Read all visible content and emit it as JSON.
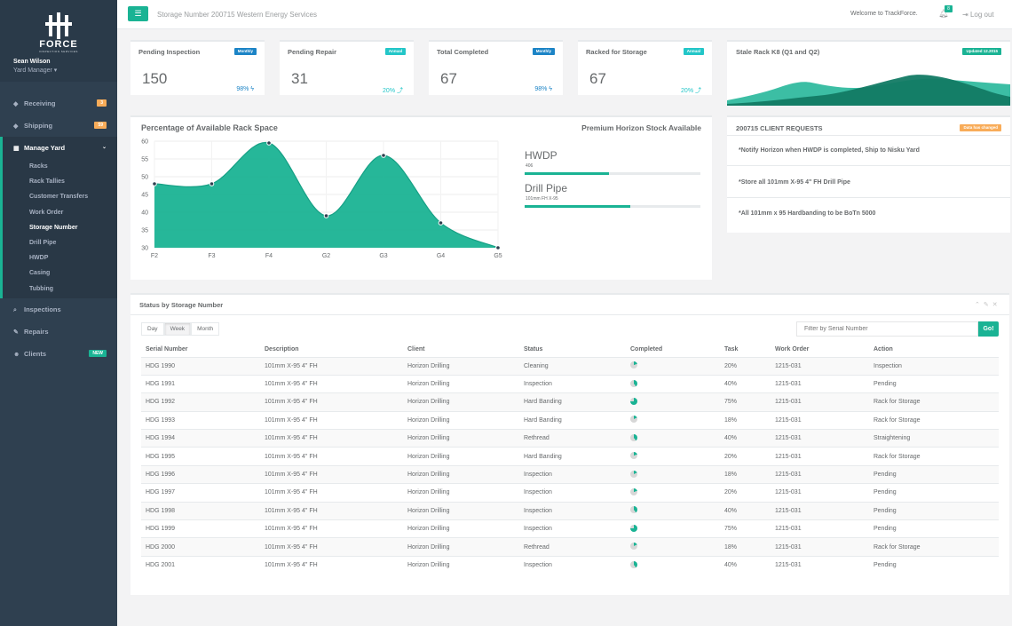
{
  "brand": {
    "name": "FORCE",
    "tagline": "INSPECTION SERVICES"
  },
  "user": {
    "name": "Sean Wilson",
    "role": "Yard Manager ▾"
  },
  "sidebar": {
    "items": [
      {
        "label": "Receiving",
        "icon": "tag-icon",
        "badge": "3",
        "badge_color": "#f8ac59"
      },
      {
        "label": "Shipping",
        "icon": "tag-icon",
        "badge": "59",
        "badge_color": "#f8ac59"
      },
      {
        "label": "Manage Yard",
        "icon": "grid-icon",
        "caret": "⌄"
      },
      {
        "label": "Inspections",
        "icon": "search-icon"
      },
      {
        "label": "Repairs",
        "icon": "wrench-icon"
      },
      {
        "label": "Clients",
        "icon": "users-icon",
        "badge": "NEW",
        "badge_color": "#1ab394"
      }
    ],
    "subitems": [
      "Racks",
      "Rack Tallies",
      "Customer Transfers",
      "Work Order",
      "Storage Number",
      "Drill Pipe",
      "HWDP",
      "Casing",
      "Tubbing"
    ]
  },
  "topbar": {
    "title": "Storage Number 200715 Western Energy Services",
    "welcome": "Welcome to TrackForce.",
    "notifications": "8",
    "logout": "Log out"
  },
  "stats": [
    {
      "title": "Pending Inspection",
      "label": "Monthly",
      "label_color": "#1c84c6",
      "value": "150",
      "pct": "98% ϟ",
      "pct_color": "#1c84c6"
    },
    {
      "title": "Pending Repair",
      "label": "Annual",
      "label_color": "#23c6c8",
      "value": "31",
      "pct": "20% ⤴",
      "pct_color": "#23c6c8"
    },
    {
      "title": "Total Completed",
      "label": "Monthly",
      "label_color": "#1c84c6",
      "value": "67",
      "pct": "98% ϟ",
      "pct_color": "#1c84c6"
    },
    {
      "title": "Racked for Storage",
      "label": "Annual",
      "label_color": "#23c6c8",
      "value": "67",
      "pct": "20% ⤴",
      "pct_color": "#23c6c8"
    }
  ],
  "stale": {
    "title": "Stale Rack K8 (Q1 and Q2)",
    "label": "Updated 12.2015"
  },
  "chart_data": {
    "type": "area",
    "title": "Percentage of Available Rack Space",
    "categories": [
      "F2",
      "F3",
      "F4",
      "G2",
      "G3",
      "G4",
      "G5"
    ],
    "values": [
      48,
      48,
      59.5,
      39,
      56,
      37,
      30
    ],
    "ylim": [
      30,
      60
    ],
    "yticks": [
      30,
      35,
      40,
      45,
      50,
      55,
      60
    ],
    "color": "#1ab394",
    "grid": true
  },
  "premium": {
    "title": "Premium Horizon Stock Available",
    "items": [
      {
        "label": "HWDP",
        "sub": "406",
        "progress": 0.48
      },
      {
        "label": "Drill Pipe",
        "sub": "101mm FH X-95",
        "progress": 0.6
      }
    ]
  },
  "requests": {
    "title": "200715 CLIENT REQUESTS",
    "label": "Data has changed",
    "items": [
      "*Notify Horizon when HWDP is completed, Ship to Nisku Yard",
      "*Store all 101mm X-95 4\" FH Drill Pipe",
      "*All 101mm x 95 Hardbanding to be BoTn 5000"
    ]
  },
  "status_table": {
    "title": "Status by Storage Number",
    "ranges": [
      "Day",
      "Week",
      "Month"
    ],
    "active_range": "Week",
    "filter_placeholder": "Filter by Serial Number",
    "go_label": "Go!",
    "columns": [
      "Serial Number",
      "Description",
      "Client",
      "Status",
      "Completed",
      "Task",
      "Work Order",
      "Action"
    ],
    "rows": [
      {
        "serial": "HDG 1990",
        "desc": "101mm X-95 4\" FH",
        "client": "Horizon Drilling",
        "status": "Cleaning",
        "completed": 0.2,
        "task": "20%",
        "wo": "1215-031",
        "action": "Inspection"
      },
      {
        "serial": "HDG 1991",
        "desc": "101mm X-95 4\" FH",
        "client": "Horizon Drilling",
        "status": "Inspection",
        "completed": 0.4,
        "task": "40%",
        "wo": "1215-031",
        "action": "Pending"
      },
      {
        "serial": "HDG 1992",
        "desc": "101mm X-95 4\" FH",
        "client": "Horizon Drilling",
        "status": "Hard Banding",
        "completed": 0.75,
        "task": "75%",
        "wo": "1215-031",
        "action": "Rack for Storage"
      },
      {
        "serial": "HDG 1993",
        "desc": "101mm X-95 4\" FH",
        "client": "Horizon Drilling",
        "status": "Hard Banding",
        "completed": 0.18,
        "task": "18%",
        "wo": "1215-031",
        "action": "Rack for Storage"
      },
      {
        "serial": "HDG 1994",
        "desc": "101mm X-95 4\" FH",
        "client": "Horizon Drilling",
        "status": "Rethread",
        "completed": 0.4,
        "task": "40%",
        "wo": "1215-031",
        "action": "Straightening"
      },
      {
        "serial": "HDG 1995",
        "desc": "101mm X-95 4\" FH",
        "client": "Horizon Drilling",
        "status": "Hard Banding",
        "completed": 0.2,
        "task": "20%",
        "wo": "1215-031",
        "action": "Rack for Storage"
      },
      {
        "serial": "HDG 1996",
        "desc": "101mm X-95 4\" FH",
        "client": "Horizon Drilling",
        "status": "Inspection",
        "completed": 0.18,
        "task": "18%",
        "wo": "1215-031",
        "action": "Pending"
      },
      {
        "serial": "HDG 1997",
        "desc": "101mm X-95 4\" FH",
        "client": "Horizon Drilling",
        "status": "Inspection",
        "completed": 0.2,
        "task": "20%",
        "wo": "1215-031",
        "action": "Pending"
      },
      {
        "serial": "HDG 1998",
        "desc": "101mm X-95 4\" FH",
        "client": "Horizon Drilling",
        "status": "Inspection",
        "completed": 0.4,
        "task": "40%",
        "wo": "1215-031",
        "action": "Pending"
      },
      {
        "serial": "HDG 1999",
        "desc": "101mm X-95 4\" FH",
        "client": "Horizon Drilling",
        "status": "Inspection",
        "completed": 0.75,
        "task": "75%",
        "wo": "1215-031",
        "action": "Pending"
      },
      {
        "serial": "HDG 2000",
        "desc": "101mm X-95 4\" FH",
        "client": "Horizon Drilling",
        "status": "Rethread",
        "completed": 0.18,
        "task": "18%",
        "wo": "1215-031",
        "action": "Rack for Storage"
      },
      {
        "serial": "HDG 2001",
        "desc": "101mm X-95 4\" FH",
        "client": "Horizon Drilling",
        "status": "Inspection",
        "completed": 0.4,
        "task": "40%",
        "wo": "1215-031",
        "action": "Pending"
      }
    ]
  }
}
